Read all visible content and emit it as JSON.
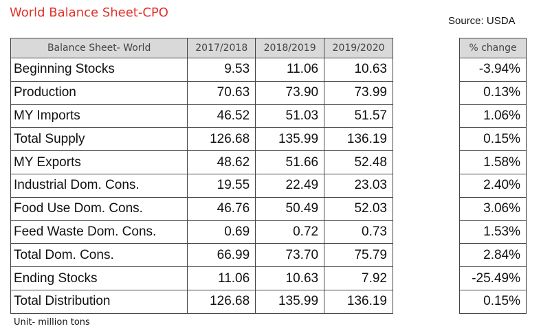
{
  "title": "World Balance Sheet-CPO",
  "source": "Source: USDA",
  "unit_note": "Unit- million tons",
  "table": {
    "headers": [
      "Balance Sheet- World",
      "2017/2018",
      "2018/2019",
      "2019/2020"
    ],
    "pct_header": "% change",
    "rows": [
      {
        "label": "Beginning Stocks",
        "values": [
          "9.53",
          "11.06",
          "10.63"
        ],
        "pct": "-3.94%"
      },
      {
        "label": "Production",
        "values": [
          "70.63",
          "73.90",
          "73.99"
        ],
        "pct": "0.13%"
      },
      {
        "label": "MY Imports",
        "values": [
          "46.52",
          "51.03",
          "51.57"
        ],
        "pct": "1.06%"
      },
      {
        "label": "Total Supply",
        "values": [
          "126.68",
          "135.99",
          "136.19"
        ],
        "pct": "0.15%"
      },
      {
        "label": "MY Exports",
        "values": [
          "48.62",
          "51.66",
          "52.48"
        ],
        "pct": "1.58%"
      },
      {
        "label": "Industrial Dom. Cons.",
        "values": [
          "19.55",
          "22.49",
          "23.03"
        ],
        "pct": "2.40%"
      },
      {
        "label": "Food Use Dom. Cons.",
        "values": [
          "46.76",
          "50.49",
          "52.03"
        ],
        "pct": "3.06%"
      },
      {
        "label": "Feed Waste Dom. Cons.",
        "values": [
          "0.69",
          "0.72",
          "0.73"
        ],
        "pct": "1.53%"
      },
      {
        "label": "Total Dom. Cons.",
        "values": [
          "66.99",
          "73.70",
          "75.79"
        ],
        "pct": "2.84%"
      },
      {
        "label": "Ending Stocks",
        "values": [
          "11.06",
          "10.63",
          "7.92"
        ],
        "pct": "-25.49%"
      },
      {
        "label": "Total Distribution",
        "values": [
          "126.68",
          "135.99",
          "136.19"
        ],
        "pct": "0.15%"
      }
    ]
  }
}
